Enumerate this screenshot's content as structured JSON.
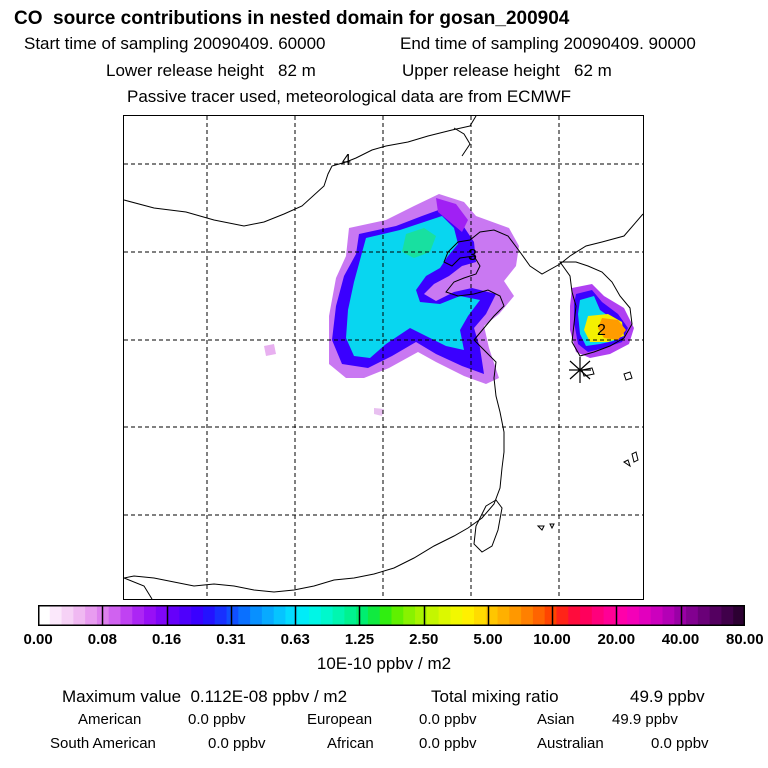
{
  "header": {
    "title": "CO  source contributions in nested domain for gosan_200904",
    "start_time": "Start time of sampling 20090409. 60000",
    "end_time": "End time of sampling 20090409. 90000",
    "lower_release": "Lower release height   82 m",
    "upper_release": "Upper release height   62 m",
    "tracer_note": "Passive tracer used, meteorological data are from ECMWF"
  },
  "chart_data": {
    "type": "heatmap",
    "title": "CO  source contributions in nested domain for gosan_200904",
    "colorbar": {
      "tick_labels": [
        "0.00",
        "0.08",
        "0.16",
        "0.31",
        "0.63",
        "1.25",
        "2.50",
        "5.00",
        "10.00",
        "20.00",
        "40.00",
        "80.00"
      ],
      "unit_label": "10E-10 ppbv / m2",
      "colors": [
        "#ffffff",
        "#fbe8fb",
        "#f6d2f6",
        "#f0b9f2",
        "#e89cf0",
        "#dd80ee",
        "#d062f0",
        "#c042f2",
        "#ac26f4",
        "#9810f6",
        "#8006f8",
        "#6600fa",
        "#4e00fc",
        "#3a00ff",
        "#2412ff",
        "#1830ff",
        "#1050ff",
        "#0a70ff",
        "#0890ff",
        "#08aaff",
        "#06c4ff",
        "#04dcff",
        "#00ecf8",
        "#00f6e6",
        "#00f8cc",
        "#00f6b0",
        "#00f290",
        "#00ee70",
        "#10ea40",
        "#30ee10",
        "#60f000",
        "#88f200",
        "#a8f400",
        "#c4f600",
        "#dcf800",
        "#f2f800",
        "#fff000",
        "#ffdc00",
        "#ffc600",
        "#ffb000",
        "#ff9800",
        "#ff8000",
        "#ff6400",
        "#ff4400",
        "#ff2418",
        "#ff0c3c",
        "#ff005c",
        "#ff007c",
        "#ff0096",
        "#ff00aa",
        "#f400b8",
        "#e200be",
        "#cc00be",
        "#b400b6",
        "#9a00a6",
        "#820090",
        "#6a0078",
        "#540060",
        "#40004a",
        "#2c0032"
      ]
    },
    "isoline_labels": [
      "4",
      "3",
      "2"
    ],
    "max_value": "Maximum value  0.112E-08 ppbv / m2",
    "total_mixing_ratio_label": "Total mixing ratio",
    "total_mixing_ratio_value": "49.9 ppbv",
    "regions": [
      {
        "name": "American",
        "value": "0.0 ppbv"
      },
      {
        "name": "European",
        "value": "0.0 ppbv"
      },
      {
        "name": "Asian",
        "value": "49.9 ppbv"
      },
      {
        "name": "South American",
        "value": "0.0 ppbv"
      },
      {
        "name": "African",
        "value": "0.0 ppbv"
      },
      {
        "name": "Australian",
        "value": "0.0 ppbv"
      }
    ]
  }
}
